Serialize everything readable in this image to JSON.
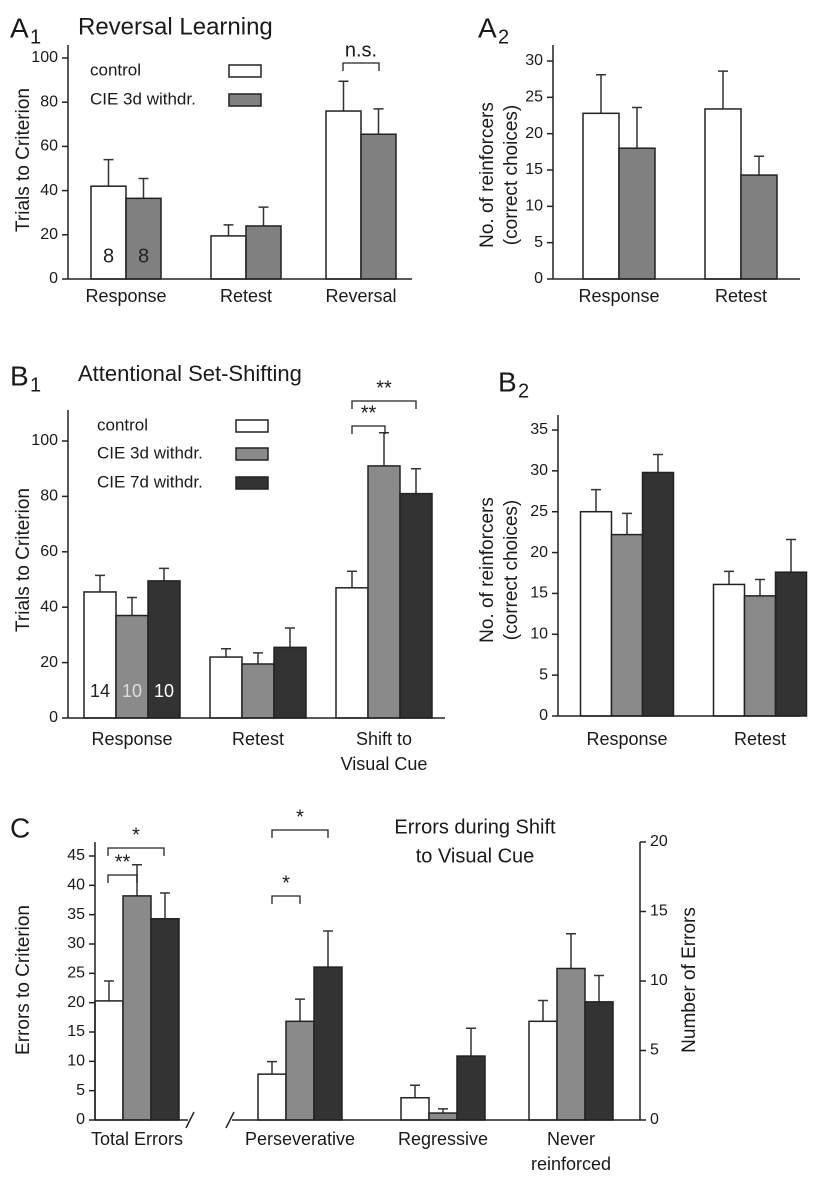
{
  "chart_data": [
    {
      "type": "bar",
      "panel": "A",
      "panel_sub": "1",
      "title": "Reversal Learning",
      "ylabel": "Trials to Criterion",
      "categories": [
        "Response",
        "Retest",
        "Reversal"
      ],
      "ylim": [
        0,
        100
      ],
      "yticks": [
        0,
        20,
        40,
        60,
        80,
        100
      ],
      "series": [
        {
          "name": "control",
          "color": "#ffffff",
          "values": [
            42,
            19.5,
            76
          ],
          "errors": [
            12,
            5,
            13.5
          ]
        },
        {
          "name": "CIE 3d withdr.",
          "color": "#808080",
          "values": [
            36.5,
            24,
            65.5
          ],
          "errors": [
            9,
            8.5,
            11.5
          ]
        }
      ],
      "n_labels": [
        8,
        8
      ],
      "annotations": [
        "n.s."
      ]
    },
    {
      "type": "bar",
      "panel": "A",
      "panel_sub": "2",
      "ylabel": [
        "No. of reinforcers",
        "(correct choices)"
      ],
      "categories": [
        "Response",
        "Retest"
      ],
      "ylim": [
        0,
        30
      ],
      "yticks": [
        0,
        5,
        10,
        15,
        20,
        25,
        30
      ],
      "series": [
        {
          "color": "#ffffff",
          "values": [
            22.8,
            23.4
          ],
          "errors": [
            5.3,
            5.2
          ]
        },
        {
          "color": "#808080",
          "values": [
            18,
            14.3
          ],
          "errors": [
            5.6,
            2.6
          ]
        }
      ]
    },
    {
      "type": "bar",
      "panel": "B",
      "panel_sub": "1",
      "title": "Attentional Set-Shifting",
      "ylabel": "Trials to Criterion",
      "categories": [
        "Response",
        "Retest",
        [
          "Shift to",
          "Visual Cue"
        ]
      ],
      "ylim": [
        0,
        100
      ],
      "yticks": [
        0,
        20,
        40,
        60,
        80,
        100
      ],
      "series": [
        {
          "name": "control",
          "color": "#ffffff",
          "values": [
            45.5,
            22,
            47
          ],
          "errors": [
            6,
            3,
            6
          ]
        },
        {
          "name": "CIE 3d withdr.",
          "color": "#8a8a8a",
          "values": [
            37,
            19.5,
            91
          ],
          "errors": [
            6.5,
            4,
            12
          ]
        },
        {
          "name": "CIE 7d withdr.",
          "color": "#333333",
          "values": [
            49.5,
            25.5,
            81
          ],
          "errors": [
            4.5,
            7,
            9
          ]
        }
      ],
      "n_labels": [
        14,
        10,
        10
      ],
      "annotations": [
        "**",
        "**"
      ]
    },
    {
      "type": "bar",
      "panel": "B",
      "panel_sub": "2",
      "ylabel": [
        "No. of reinforcers",
        "(correct choices)"
      ],
      "categories": [
        "Response",
        "Retest"
      ],
      "ylim": [
        0,
        35
      ],
      "yticks": [
        0,
        5,
        10,
        15,
        20,
        25,
        30,
        35
      ],
      "series": [
        {
          "color": "#ffffff",
          "values": [
            25,
            16.1
          ],
          "errors": [
            2.7,
            1.6
          ]
        },
        {
          "color": "#8a8a8a",
          "values": [
            22.2,
            14.7
          ],
          "errors": [
            2.6,
            2
          ]
        },
        {
          "color": "#333333",
          "values": [
            29.8,
            17.6
          ],
          "errors": [
            2.2,
            4
          ]
        }
      ]
    },
    {
      "type": "bar",
      "panel": "C",
      "ylabel": "Errors to Criterion",
      "categories": [
        "Total Errors"
      ],
      "ylim": [
        0,
        45
      ],
      "yticks": [
        0,
        5,
        10,
        15,
        20,
        25,
        30,
        35,
        40,
        45
      ],
      "series": [
        {
          "color": "#ffffff",
          "values": [
            20.3
          ],
          "errors": [
            3.4
          ]
        },
        {
          "color": "#8a8a8a",
          "values": [
            38.2
          ],
          "errors": [
            5.3
          ]
        },
        {
          "color": "#333333",
          "values": [
            34.3
          ],
          "errors": [
            4.4
          ]
        }
      ],
      "annotations": [
        "*",
        "**"
      ]
    },
    {
      "type": "bar",
      "title": [
        "Errors during Shift",
        "to Visual Cue"
      ],
      "ylabel": "Number of Errors",
      "yaxis": "right",
      "categories": [
        "Perseverative",
        "Regressive",
        [
          "Never",
          "reinforced"
        ]
      ],
      "ylim": [
        0,
        20
      ],
      "yticks": [
        0,
        5,
        10,
        15,
        20
      ],
      "series": [
        {
          "color": "#ffffff",
          "values": [
            3.3,
            1.6,
            7.1
          ],
          "errors": [
            0.9,
            0.9,
            1.5
          ]
        },
        {
          "color": "#8a8a8a",
          "values": [
            7.1,
            0.5,
            10.9
          ],
          "errors": [
            1.6,
            0.3,
            2.5
          ]
        },
        {
          "color": "#333333",
          "values": [
            11,
            4.6,
            8.5
          ],
          "errors": [
            2.6,
            2,
            1.9
          ]
        }
      ],
      "annotations": [
        "*",
        "*"
      ]
    }
  ]
}
